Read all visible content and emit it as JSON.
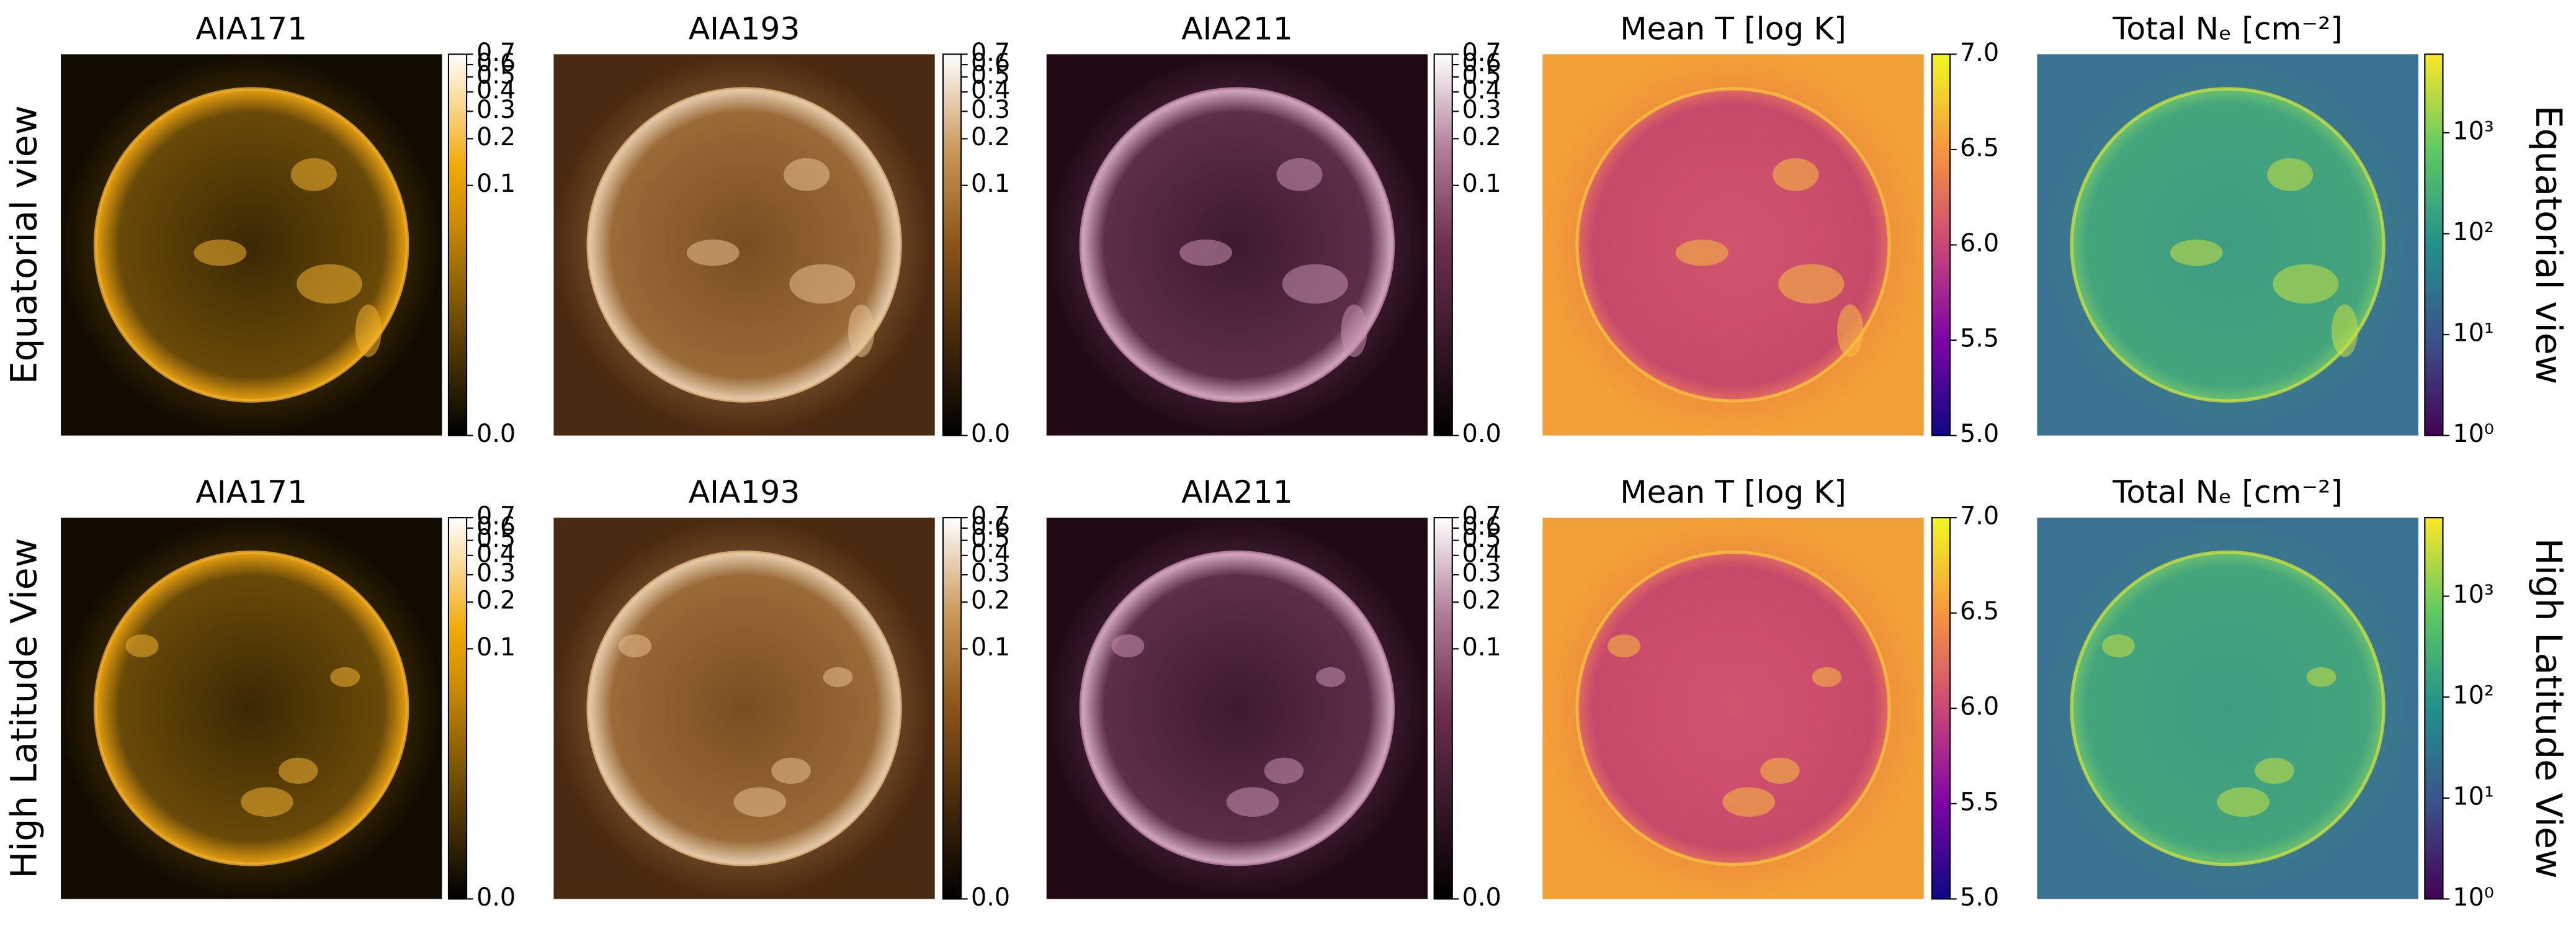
{
  "rows": [
    {
      "label": "Equatorial view",
      "panels": [
        {
          "title": "AIA171",
          "colorbar": {
            "scale": "asinh",
            "lim": [
              0,
              0.7
            ],
            "ticks": [
              {
                "value": 0,
                "label": "0.0"
              },
              0.1,
              0.2,
              0.3,
              0.4,
              0.5,
              0.6,
              0.7
            ]
          }
        },
        {
          "title": "AIA193",
          "colorbar": {
            "scale": "asinh",
            "lim": [
              0,
              0.7
            ],
            "ticks": [
              {
                "value": 0,
                "label": "0.0"
              },
              0.1,
              0.2,
              0.3,
              0.4,
              0.5,
              0.6,
              0.7
            ]
          }
        },
        {
          "title": "AIA211",
          "colorbar": {
            "scale": "asinh",
            "lim": [
              0,
              0.7
            ],
            "ticks": [
              {
                "value": 0,
                "label": "0.0"
              },
              0.1,
              0.2,
              0.3,
              0.4,
              0.5,
              0.6,
              0.7
            ]
          }
        },
        {
          "title": "Mean T [log K]",
          "colorbar": {
            "scale": "linear",
            "lim": [
              5,
              7
            ],
            "ticks": [
              {
                "value": 5,
                "label": "5.0"
              },
              5.5,
              {
                "value": 6,
                "label": "6.0"
              },
              6.5,
              {
                "value": 7,
                "label": "7.0"
              }
            ]
          }
        },
        {
          "title": "Total Nₑ [cm⁻²]",
          "colorbar": {
            "scale": "log",
            "lim": [
              1,
              6000
            ],
            "ticks": [
              {
                "value": 1,
                "label": "10⁰"
              },
              {
                "value": 10,
                "label": "10¹"
              },
              {
                "value": 100,
                "label": "10²"
              },
              {
                "value": 1000,
                "label": "10³"
              }
            ]
          }
        }
      ]
    },
    {
      "label": "High Latitude View",
      "panels": [
        {
          "title": "AIA171",
          "colorbar": {
            "scale": "asinh",
            "lim": [
              0,
              0.7
            ],
            "ticks": [
              {
                "value": 0,
                "label": "0.0"
              },
              0.1,
              0.2,
              0.3,
              0.4,
              0.5,
              0.6,
              0.7
            ]
          }
        },
        {
          "title": "AIA193",
          "colorbar": {
            "scale": "asinh",
            "lim": [
              0,
              0.7
            ],
            "ticks": [
              {
                "value": 0,
                "label": "0.0"
              },
              0.1,
              0.2,
              0.3,
              0.4,
              0.5,
              0.6,
              0.7
            ]
          }
        },
        {
          "title": "AIA211",
          "colorbar": {
            "scale": "asinh",
            "lim": [
              0,
              0.7
            ],
            "ticks": [
              {
                "value": 0,
                "label": "0.0"
              },
              0.1,
              0.2,
              0.3,
              0.4,
              0.5,
              0.6,
              0.7
            ]
          }
        },
        {
          "title": "Mean T [log K]",
          "colorbar": {
            "scale": "linear",
            "lim": [
              5,
              7
            ],
            "ticks": [
              {
                "value": 5,
                "label": "5.0"
              },
              5.5,
              {
                "value": 6,
                "label": "6.0"
              },
              6.5,
              {
                "value": 7,
                "label": "7.0"
              }
            ]
          }
        },
        {
          "title": "Total Nₑ [cm⁻²]",
          "colorbar": {
            "scale": "log",
            "lim": [
              1,
              6000
            ],
            "ticks": [
              {
                "value": 1,
                "label": "10⁰"
              },
              {
                "value": 10,
                "label": "10¹"
              },
              {
                "value": 100,
                "label": "10²"
              },
              {
                "value": 1000,
                "label": "10³"
              }
            ]
          }
        }
      ]
    }
  ]
}
